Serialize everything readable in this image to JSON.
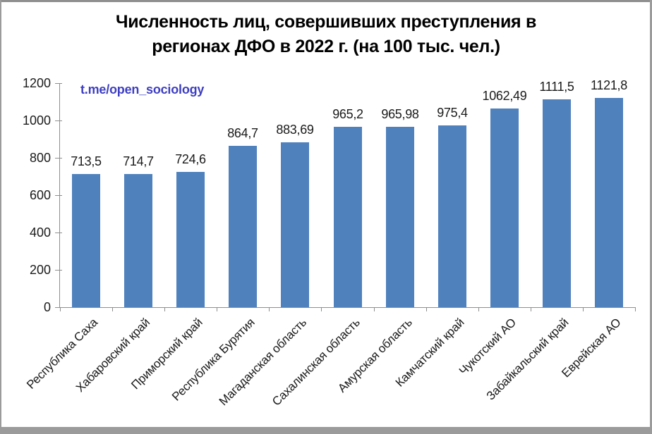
{
  "window": {
    "border_color_top": "#8f8f8f",
    "border_color_sides": "#9b9b9b",
    "background": "#ffffff"
  },
  "chart_data": {
    "type": "bar",
    "title": "Численность лиц, совершивших преступления в регионах ДФО в 2022 г. (на 100 тыс. чел.)",
    "title_lines": [
      "Численность лиц, совершивших преступления в",
      "регионах ДФО в 2022 г. (на 100 тыс. чел.)"
    ],
    "watermark": "t.me/open_sociology",
    "watermark_color": "#3d3ec2",
    "categories": [
      "Республика Саха",
      "Хабаровский край",
      "Приморский край",
      "Республика Бурятия",
      "Магаданская область",
      "Сахалинская область",
      "Амурская область",
      "Камчатский край",
      "Чукотский АО",
      "Забайкальский край",
      "Еврейская АО"
    ],
    "values": [
      713.5,
      714.7,
      724.6,
      864.7,
      883.69,
      965.2,
      965.98,
      975.4,
      1062.49,
      1111.5,
      1121.8
    ],
    "value_labels": [
      "713,5",
      "714,7",
      "724,6",
      "864,7",
      "883,69",
      "965,2",
      "965,98",
      "975,4",
      "1062,49",
      "1111,5",
      "1121,8"
    ],
    "xlabel": "",
    "ylabel": "",
    "ylim": [
      0,
      1200
    ],
    "yticks": [
      0,
      200,
      400,
      600,
      800,
      1000,
      1200
    ],
    "grid": false,
    "legend": "none",
    "bar_color": "#4f81bd",
    "axis_color": "#8e8e8e"
  }
}
